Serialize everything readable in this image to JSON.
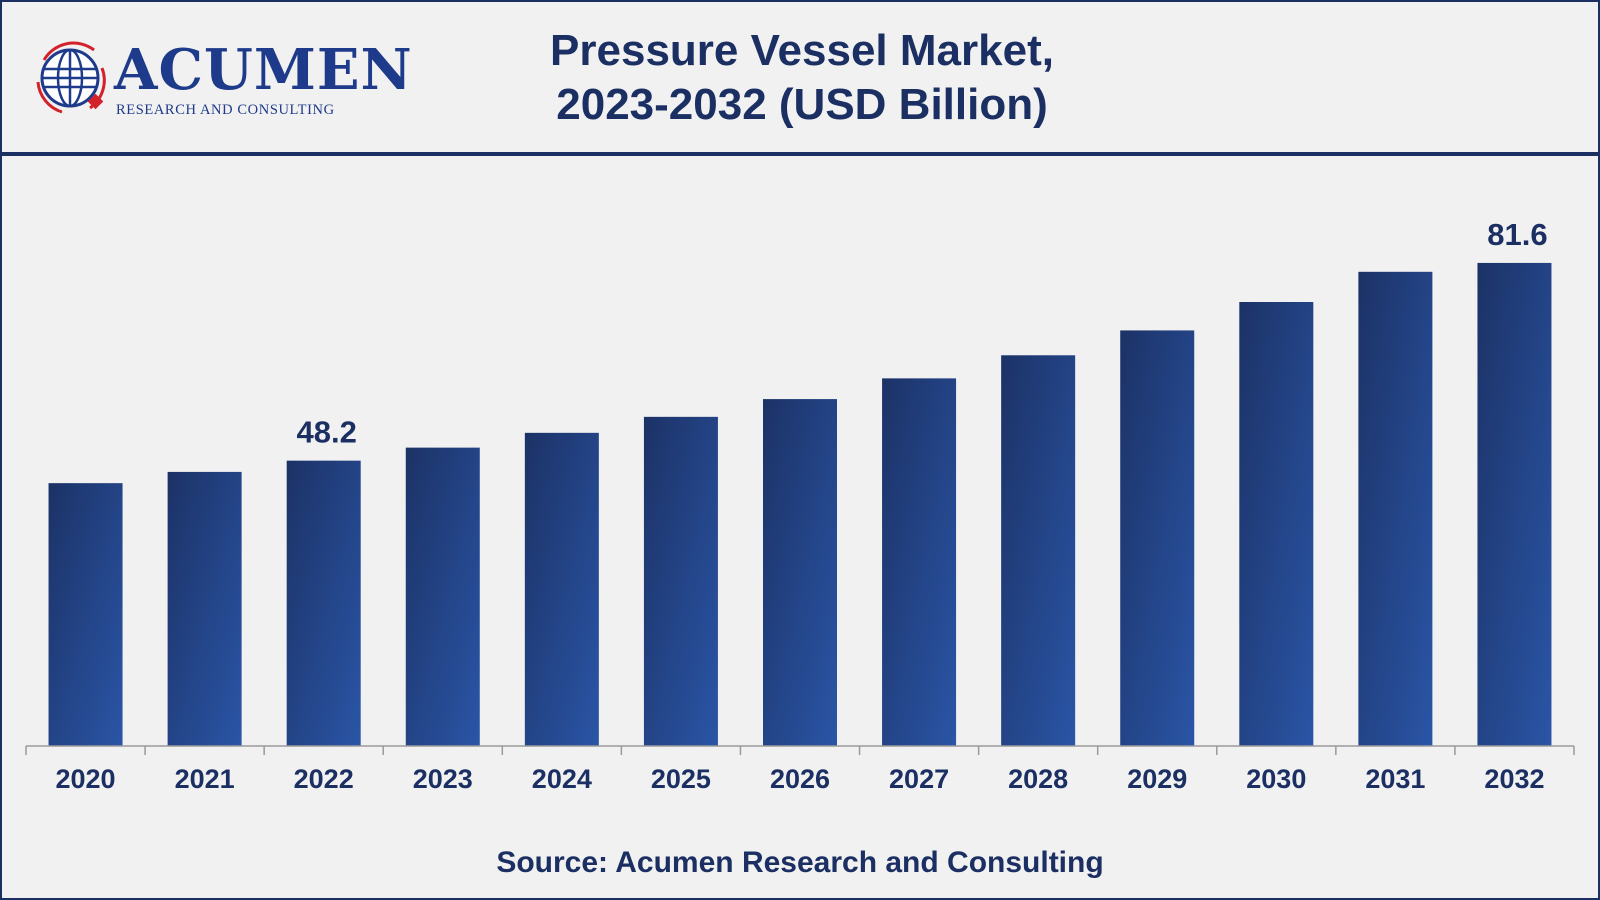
{
  "header": {
    "logo_word": "ACUMEN",
    "logo_subtitle": "RESEARCH AND CONSULTING",
    "title_line1": "Pressure Vessel Market,",
    "title_line2": "2023-2032 (USD Billion)"
  },
  "source": "Source: Acumen Research and Consulting",
  "colors": {
    "bar_dark": "#1c3266",
    "bar_light": "#2a55a6",
    "text": "#1b2f63",
    "logo_red": "#d4222a"
  },
  "chart_data": {
    "type": "bar",
    "categories": [
      "2020",
      "2021",
      "2022",
      "2023",
      "2024",
      "2025",
      "2026",
      "2027",
      "2028",
      "2029",
      "2030",
      "2031",
      "2032"
    ],
    "values": [
      44.4,
      46.3,
      48.2,
      50.4,
      52.9,
      55.6,
      58.6,
      62.1,
      66.0,
      70.2,
      75.0,
      80.1,
      81.6
    ],
    "data_labels": [
      {
        "category": "2022",
        "text": "48.2"
      },
      {
        "category": "2032",
        "text": "81.6"
      }
    ],
    "ylim": [
      0,
      100
    ],
    "grid": false,
    "legend": "none"
  }
}
